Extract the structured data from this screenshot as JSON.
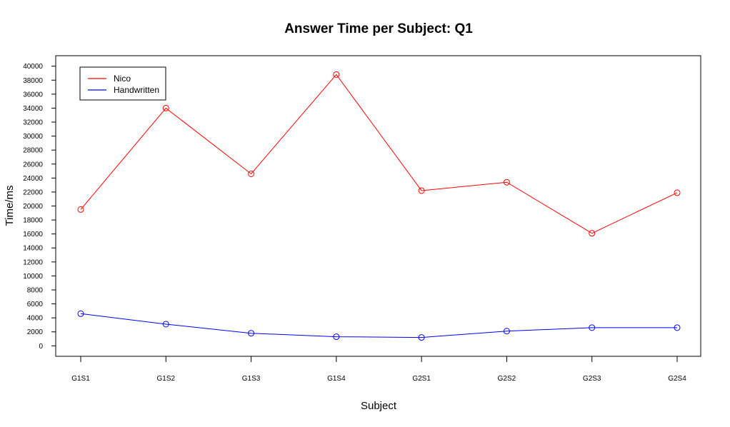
{
  "chart_data": {
    "type": "line",
    "title": "Answer Time per Subject: Q1",
    "xlabel": "Subject",
    "ylabel": "Time/ms",
    "categories": [
      "G1S1",
      "G1S2",
      "G1S3",
      "G1S4",
      "G2S1",
      "G2S2",
      "G2S3",
      "G2S4"
    ],
    "ylim": [
      -1500,
      41500
    ],
    "yticks": [
      0,
      2000,
      4000,
      6000,
      8000,
      10000,
      12000,
      14000,
      16000,
      18000,
      20000,
      22000,
      24000,
      26000,
      28000,
      30000,
      32000,
      34000,
      36000,
      38000,
      40000
    ],
    "grid": false,
    "legend_position": "top-left",
    "series": [
      {
        "name": "Nico",
        "color": "#ff0000",
        "marker": "open-circle",
        "values": [
          19500,
          34000,
          24600,
          38800,
          22200,
          23400,
          16100,
          21900
        ]
      },
      {
        "name": "Handwritten",
        "color": "#0000ff",
        "marker": "open-circle",
        "values": [
          4600,
          3100,
          1800,
          1300,
          1200,
          2100,
          2600,
          2600
        ]
      }
    ]
  }
}
